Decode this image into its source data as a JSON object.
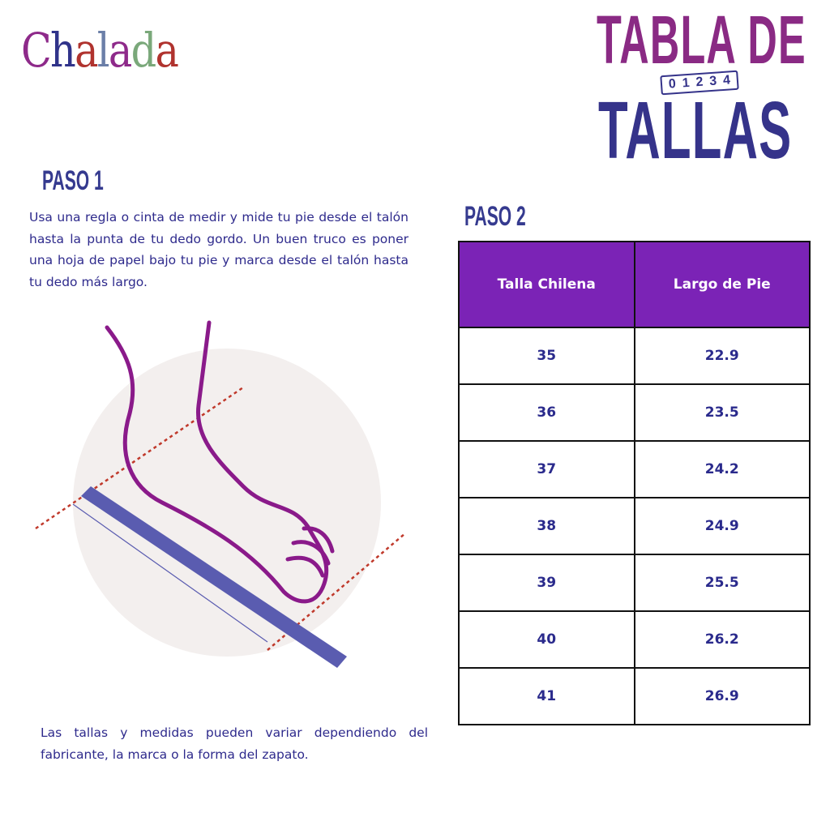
{
  "logo": {
    "text": "Chalada",
    "letters": [
      "C",
      "h",
      "a",
      "l",
      "a",
      "d",
      "a"
    ]
  },
  "title": {
    "line1": "TABLA DE",
    "line2": "TALLAS",
    "ruler_digits": [
      "0",
      "1",
      "2",
      "3",
      "4"
    ]
  },
  "step1": {
    "heading": "PASO 1",
    "text": "Usa una regla o cinta de medir y mide tu pie desde el talón hasta la punta de tu dedo gordo. Un buen truco es poner una hoja de papel bajo tu pie y marca desde el talón hasta tu dedo más largo."
  },
  "step2": {
    "heading": "PASO 2"
  },
  "table": {
    "headers": [
      "Talla Chilena",
      "Largo de Pie"
    ],
    "rows": [
      [
        "35",
        "22.9"
      ],
      [
        "36",
        "23.5"
      ],
      [
        "37",
        "24.2"
      ],
      [
        "38",
        "24.9"
      ],
      [
        "39",
        "25.5"
      ],
      [
        "40",
        "26.2"
      ],
      [
        "41",
        "26.9"
      ]
    ]
  },
  "note": "Las tallas y medidas pueden variar dependiendo del fabricante, la marca o la forma del zapato.",
  "colors": {
    "header_bg": "#7b23b6",
    "text_blue": "#2e2a8c",
    "title_purple": "#8a2a84",
    "title_blue": "#35338a",
    "foot": "#8a1a8a",
    "ruler": "#5a5cb0",
    "guide": "#c0392b"
  }
}
